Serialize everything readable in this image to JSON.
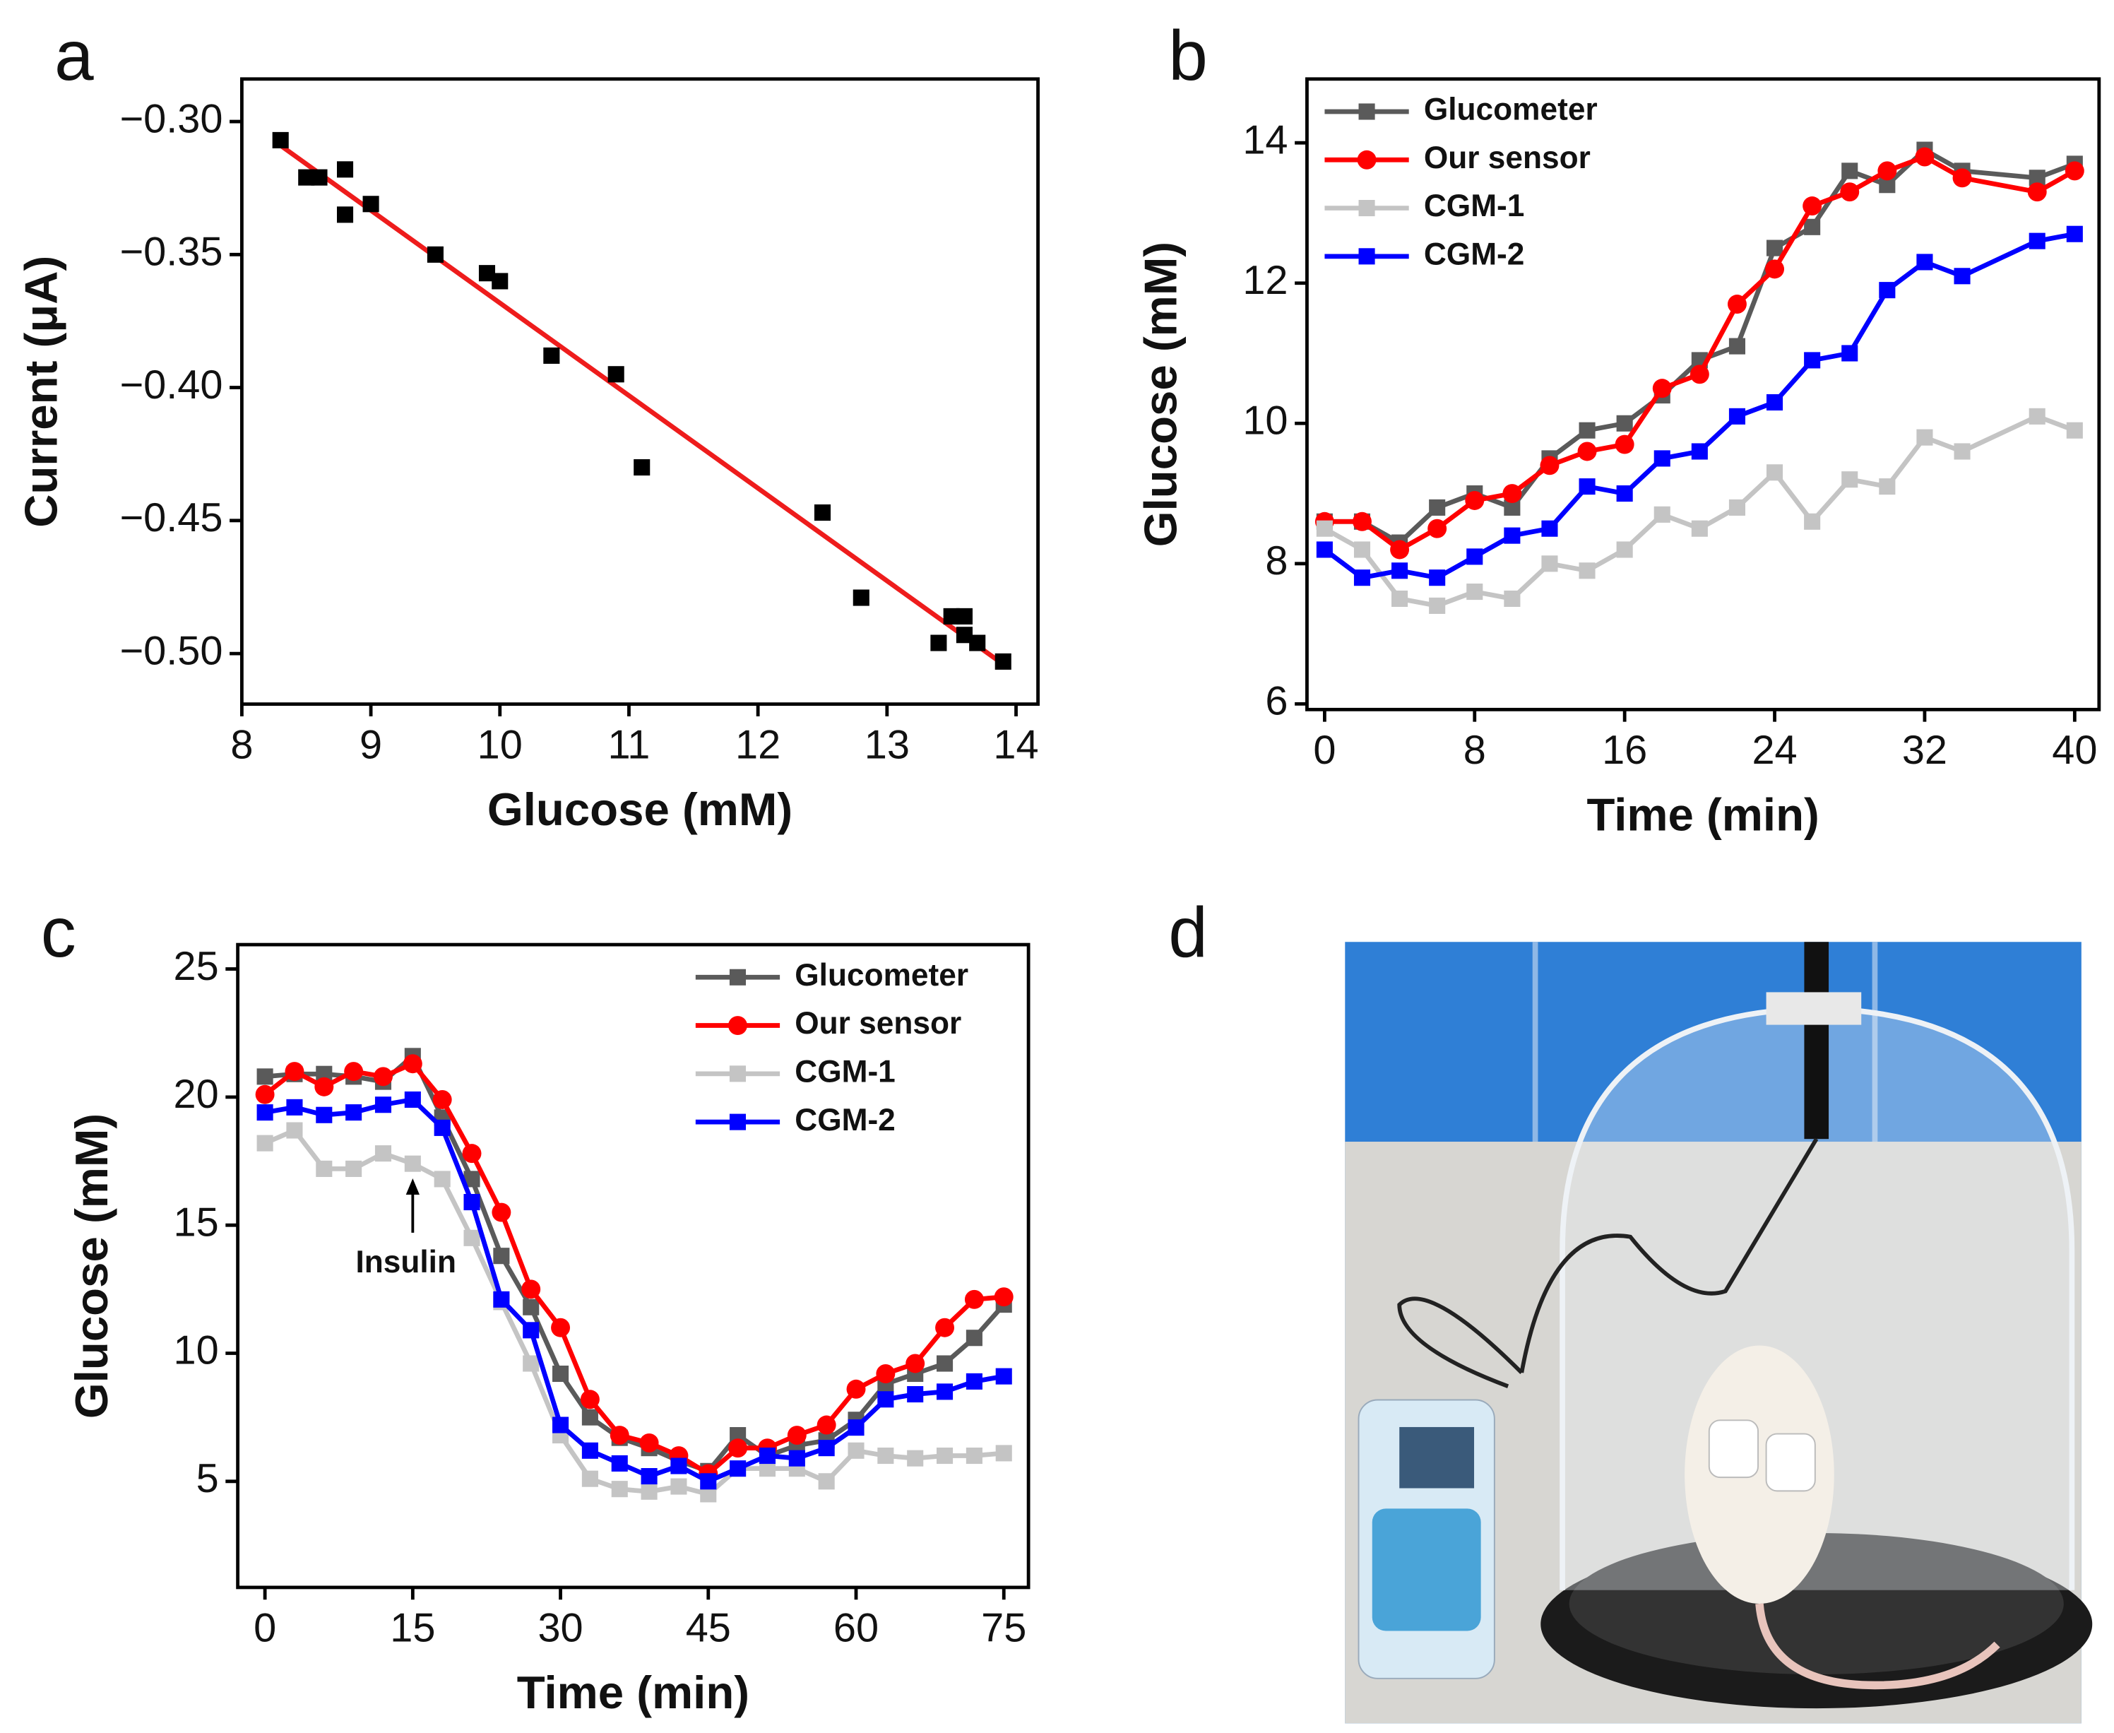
{
  "chart_data": [
    {
      "type": "scatter",
      "panel": "a",
      "x_label": "Glucose (mM)",
      "y_label": "Current (μA)",
      "x": [
        8.3,
        8.5,
        8.6,
        8.8,
        8.8,
        9.0,
        9.5,
        9.9,
        10.0,
        10.4,
        10.9,
        11.1,
        12.5,
        12.8,
        13.4,
        13.5,
        13.6,
        13.6,
        13.7,
        13.9
      ],
      "values": [
        -0.307,
        -0.321,
        -0.321,
        -0.318,
        -0.335,
        -0.331,
        -0.35,
        -0.357,
        -0.36,
        -0.388,
        -0.395,
        -0.43,
        -0.447,
        -0.479,
        -0.496,
        -0.486,
        -0.486,
        -0.493,
        -0.496,
        -0.503
      ],
      "color": "#000000",
      "fit": {
        "x": [
          8.3,
          13.9
        ],
        "y": [
          -0.309,
          -0.504
        ],
        "color": "#ee1c1c"
      },
      "xlim": [
        8,
        14.17
      ],
      "xticks": [
        8,
        9,
        10,
        11,
        12,
        13,
        14
      ],
      "ylim": [
        -0.519,
        -0.284
      ],
      "yticks": [
        {
          "value": -0.3,
          "label": "−0.30"
        },
        {
          "value": -0.35,
          "label": "−0.35"
        },
        {
          "value": -0.4,
          "label": "−0.40"
        },
        {
          "value": -0.45,
          "label": "−0.45"
        },
        {
          "value": -0.5,
          "label": "−0.50"
        }
      ]
    },
    {
      "type": "line",
      "panel": "b",
      "x_label": "Time (min)",
      "y_label": "Glucose (mM)",
      "legend": "upper left",
      "x": [
        0,
        2,
        4,
        6,
        8,
        10,
        12,
        14,
        16,
        18,
        20,
        22,
        24,
        26,
        28,
        30,
        32,
        34,
        38,
        40
      ],
      "series": [
        {
          "name": "Glucometer",
          "color": "#5a5a5a",
          "marker": "square",
          "values": [
            8.6,
            8.6,
            8.3,
            8.8,
            9.0,
            8.8,
            9.5,
            9.9,
            10.0,
            10.4,
            10.9,
            11.1,
            12.5,
            12.8,
            13.6,
            13.4,
            13.9,
            13.6,
            13.5,
            13.7
          ]
        },
        {
          "name": "Our sensor",
          "color": "#ff0000",
          "marker": "circle",
          "values": [
            8.6,
            8.6,
            8.2,
            8.5,
            8.9,
            9.0,
            9.4,
            9.6,
            9.7,
            10.5,
            10.7,
            11.7,
            12.2,
            13.1,
            13.3,
            13.6,
            13.8,
            13.5,
            13.3,
            13.6
          ]
        },
        {
          "name": "CGM-1",
          "color": "#c4c4c4",
          "marker": "square",
          "values": [
            8.5,
            8.2,
            7.5,
            7.4,
            7.6,
            7.5,
            8.0,
            7.9,
            8.2,
            8.7,
            8.5,
            8.8,
            9.3,
            8.6,
            9.2,
            9.1,
            9.8,
            9.6,
            10.1,
            9.9
          ]
        },
        {
          "name": "CGM-2",
          "color": "#0000ff",
          "marker": "square",
          "values": [
            8.2,
            7.8,
            7.9,
            7.8,
            8.1,
            8.4,
            8.5,
            9.1,
            9.0,
            9.5,
            9.6,
            10.1,
            10.3,
            10.9,
            11.0,
            11.9,
            12.3,
            12.1,
            12.6,
            12.7
          ]
        }
      ],
      "xlim": [
        -0.94,
        41.3
      ],
      "xticks": [
        0,
        8,
        16,
        24,
        32,
        40
      ],
      "ylim": [
        5.92,
        14.91
      ],
      "yticks": [
        6,
        8,
        10,
        12,
        14
      ]
    },
    {
      "type": "line",
      "panel": "c",
      "x_label": "Time (min)",
      "y_label": "Glucose (mM)",
      "legend": "upper right",
      "annotations": [
        "Insulin"
      ],
      "x": [
        0,
        3,
        6,
        9,
        12,
        15,
        18,
        21,
        24,
        27,
        30,
        33,
        36,
        39,
        42,
        45,
        48,
        51,
        54,
        57,
        60,
        63,
        66,
        69,
        72,
        75
      ],
      "series": [
        {
          "name": "Glucometer",
          "color": "#5a5a5a",
          "marker": "square",
          "values": [
            20.8,
            20.9,
            20.9,
            20.8,
            20.6,
            21.6,
            19.2,
            16.8,
            13.8,
            11.8,
            9.2,
            7.5,
            6.7,
            6.3,
            5.8,
            5.4,
            6.8,
            6.0,
            6.4,
            6.6,
            7.4,
            8.8,
            9.2,
            9.6,
            10.6,
            11.9
          ]
        },
        {
          "name": "Our sensor",
          "color": "#ff0000",
          "marker": "circle",
          "values": [
            20.1,
            21.0,
            20.4,
            21.0,
            20.8,
            21.3,
            19.9,
            17.8,
            15.5,
            12.5,
            11.0,
            8.2,
            6.8,
            6.5,
            6.0,
            5.3,
            6.3,
            6.3,
            6.8,
            7.2,
            8.6,
            9.2,
            9.6,
            11.0,
            12.1,
            12.2
          ]
        },
        {
          "name": "CGM-1",
          "color": "#c4c4c4",
          "marker": "square",
          "values": [
            18.2,
            18.7,
            17.2,
            17.2,
            17.8,
            17.4,
            16.8,
            14.5,
            12.0,
            9.6,
            6.8,
            5.1,
            4.7,
            4.6,
            4.8,
            4.5,
            5.5,
            5.5,
            5.5,
            5.0,
            6.2,
            6.0,
            5.9,
            6.0,
            6.0,
            6.1
          ]
        },
        {
          "name": "CGM-2",
          "color": "#0000ff",
          "marker": "square",
          "values": [
            19.4,
            19.6,
            19.3,
            19.4,
            19.7,
            19.9,
            18.8,
            15.9,
            12.1,
            10.9,
            7.2,
            6.2,
            5.7,
            5.2,
            5.6,
            5.0,
            5.5,
            6.0,
            5.9,
            6.3,
            7.1,
            8.2,
            8.4,
            8.5,
            8.9,
            9.1
          ]
        }
      ],
      "xlim": [
        -2.76,
        77.5
      ],
      "xticks": [
        0,
        15,
        30,
        45,
        60,
        75
      ],
      "ylim": [
        0.86,
        25.95
      ],
      "yticks": [
        5,
        10,
        15,
        20,
        25
      ]
    }
  ],
  "panel_d": {
    "panel": "d"
  }
}
